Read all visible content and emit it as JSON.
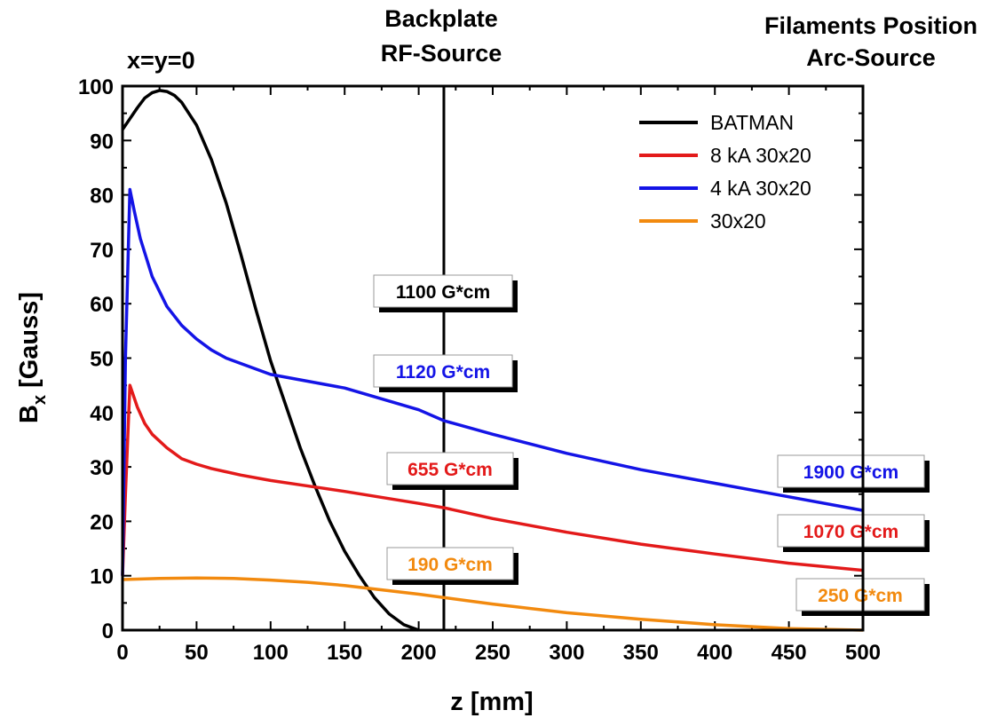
{
  "chart_data": {
    "type": "line",
    "xlabel": "z [mm]",
    "ylabel_main": "B",
    "ylabel_sub": "x",
    "ylabel_rest": " [Gauss]",
    "xlim": [
      0,
      500
    ],
    "ylim": [
      0,
      100
    ],
    "xticks": [
      0,
      50,
      100,
      150,
      200,
      250,
      300,
      350,
      400,
      450,
      500
    ],
    "yticks": [
      0,
      10,
      20,
      30,
      40,
      50,
      60,
      70,
      80,
      90,
      100
    ],
    "grid": false,
    "legend_position": "top-right",
    "annotations": {
      "origin": "x=y=0",
      "backplate_line1": "Backplate",
      "backplate_line2": "RF-Source",
      "filaments_line1": "Filaments Position",
      "filaments_line2": "Arc-Source"
    },
    "vertical_line_z": 217,
    "series": [
      {
        "name": "BATMAN",
        "color": "#000000",
        "x": [
          0,
          5,
          10,
          15,
          20,
          25,
          30,
          35,
          40,
          50,
          60,
          70,
          80,
          90,
          100,
          110,
          120,
          130,
          140,
          150,
          160,
          170,
          180,
          190,
          200
        ],
        "y": [
          92,
          94,
          96,
          97.8,
          98.8,
          99.2,
          99,
          98.3,
          97,
          92.8,
          86.5,
          78.5,
          69,
          59,
          49.5,
          41.5,
          33.5,
          26.5,
          20,
          14.5,
          10,
          6,
          3,
          1,
          0
        ]
      },
      {
        "name": "8 kA 30x20",
        "color": "#e31a1a",
        "x": [
          0,
          2,
          5,
          10,
          15,
          20,
          30,
          40,
          50,
          60,
          80,
          100,
          120,
          150,
          200,
          217,
          250,
          300,
          350,
          400,
          450,
          500
        ],
        "y": [
          10,
          25,
          45,
          41,
          38,
          36,
          33.5,
          31.5,
          30.5,
          29.7,
          28.5,
          27.5,
          26.7,
          25.5,
          23.3,
          22.5,
          20.5,
          18,
          15.8,
          14,
          12.3,
          11
        ]
      },
      {
        "name": "4 kA 30x20",
        "color": "#1414e6",
        "x": [
          0,
          2,
          5,
          8,
          12,
          16,
          20,
          30,
          40,
          50,
          60,
          70,
          80,
          100,
          120,
          150,
          200,
          217,
          250,
          300,
          350,
          400,
          450,
          500
        ],
        "y": [
          10,
          50,
          81,
          77,
          72,
          68.5,
          65,
          59.5,
          56,
          53.5,
          51.5,
          50,
          49,
          47,
          46,
          44.5,
          40.5,
          38.5,
          36,
          32.5,
          29.5,
          27,
          24.5,
          22
        ]
      },
      {
        "name": "30x20",
        "color": "#f28a0f",
        "x": [
          0,
          25,
          50,
          75,
          100,
          125,
          150,
          175,
          200,
          250,
          300,
          350,
          400,
          450,
          500
        ],
        "y": [
          9.3,
          9.5,
          9.6,
          9.5,
          9.2,
          8.8,
          8.2,
          7.4,
          6.6,
          4.8,
          3.2,
          2,
          1,
          0.3,
          0
        ]
      }
    ],
    "boxes": [
      {
        "text": "1100 G*cm",
        "color": "#000000",
        "series": "BATMAN"
      },
      {
        "text": "1120 G*cm",
        "color": "#1414e6",
        "series": "4 kA 30x20"
      },
      {
        "text": "655 G*cm",
        "color": "#e31a1a",
        "series": "8 kA 30x20"
      },
      {
        "text": "190 G*cm",
        "color": "#f28a0f",
        "series": "30x20"
      },
      {
        "text": "1900 G*cm",
        "color": "#1414e6",
        "series": "4 kA 30x20"
      },
      {
        "text": "1070 G*cm",
        "color": "#e31a1a",
        "series": "8 kA 30x20"
      },
      {
        "text": "250 G*cm",
        "color": "#f28a0f",
        "series": "30x20"
      }
    ]
  }
}
